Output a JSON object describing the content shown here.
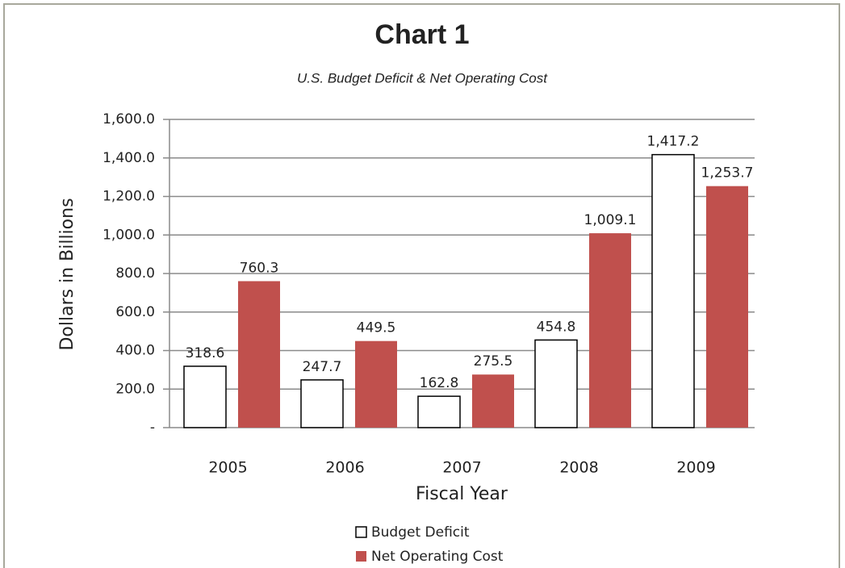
{
  "chart_data": {
    "type": "bar",
    "title": "Chart 1",
    "subtitle": "U.S. Budget Deficit & Net Operating Cost",
    "x_label": "Fiscal Year",
    "y_label": "Dollars in Billions",
    "categories": [
      "2005",
      "2006",
      "2007",
      "2008",
      "2009"
    ],
    "series": [
      {
        "name": "Budget Deficit",
        "color": "#ffffff",
        "values": [
          318.6,
          247.7,
          162.8,
          454.8,
          1417.2
        ],
        "value_labels": [
          "318.6",
          "247.7",
          "162.8",
          "454.8",
          "1,417.2"
        ]
      },
      {
        "name": "Net Operating Cost",
        "color": "#c0504d",
        "values": [
          760.3,
          449.5,
          275.5,
          1009.1,
          1253.7
        ],
        "value_labels": [
          "760.3",
          "449.5",
          "275.5",
          "1,009.1",
          "1,253.7"
        ]
      }
    ],
    "ylim": [
      0,
      1600
    ],
    "yticks": [
      {
        "value": 0,
        "label": "-"
      },
      {
        "value": 200,
        "label": "200.0"
      },
      {
        "value": 400,
        "label": "400.0"
      },
      {
        "value": 600,
        "label": "600.0"
      },
      {
        "value": 800,
        "label": "800.0"
      },
      {
        "value": 1000,
        "label": "1,000.0"
      },
      {
        "value": 1200,
        "label": "1,200.0"
      },
      {
        "value": 1400,
        "label": "1,400.0"
      },
      {
        "value": 1600,
        "label": "1,600.0"
      }
    ],
    "grid": true,
    "legend": "bottom"
  }
}
